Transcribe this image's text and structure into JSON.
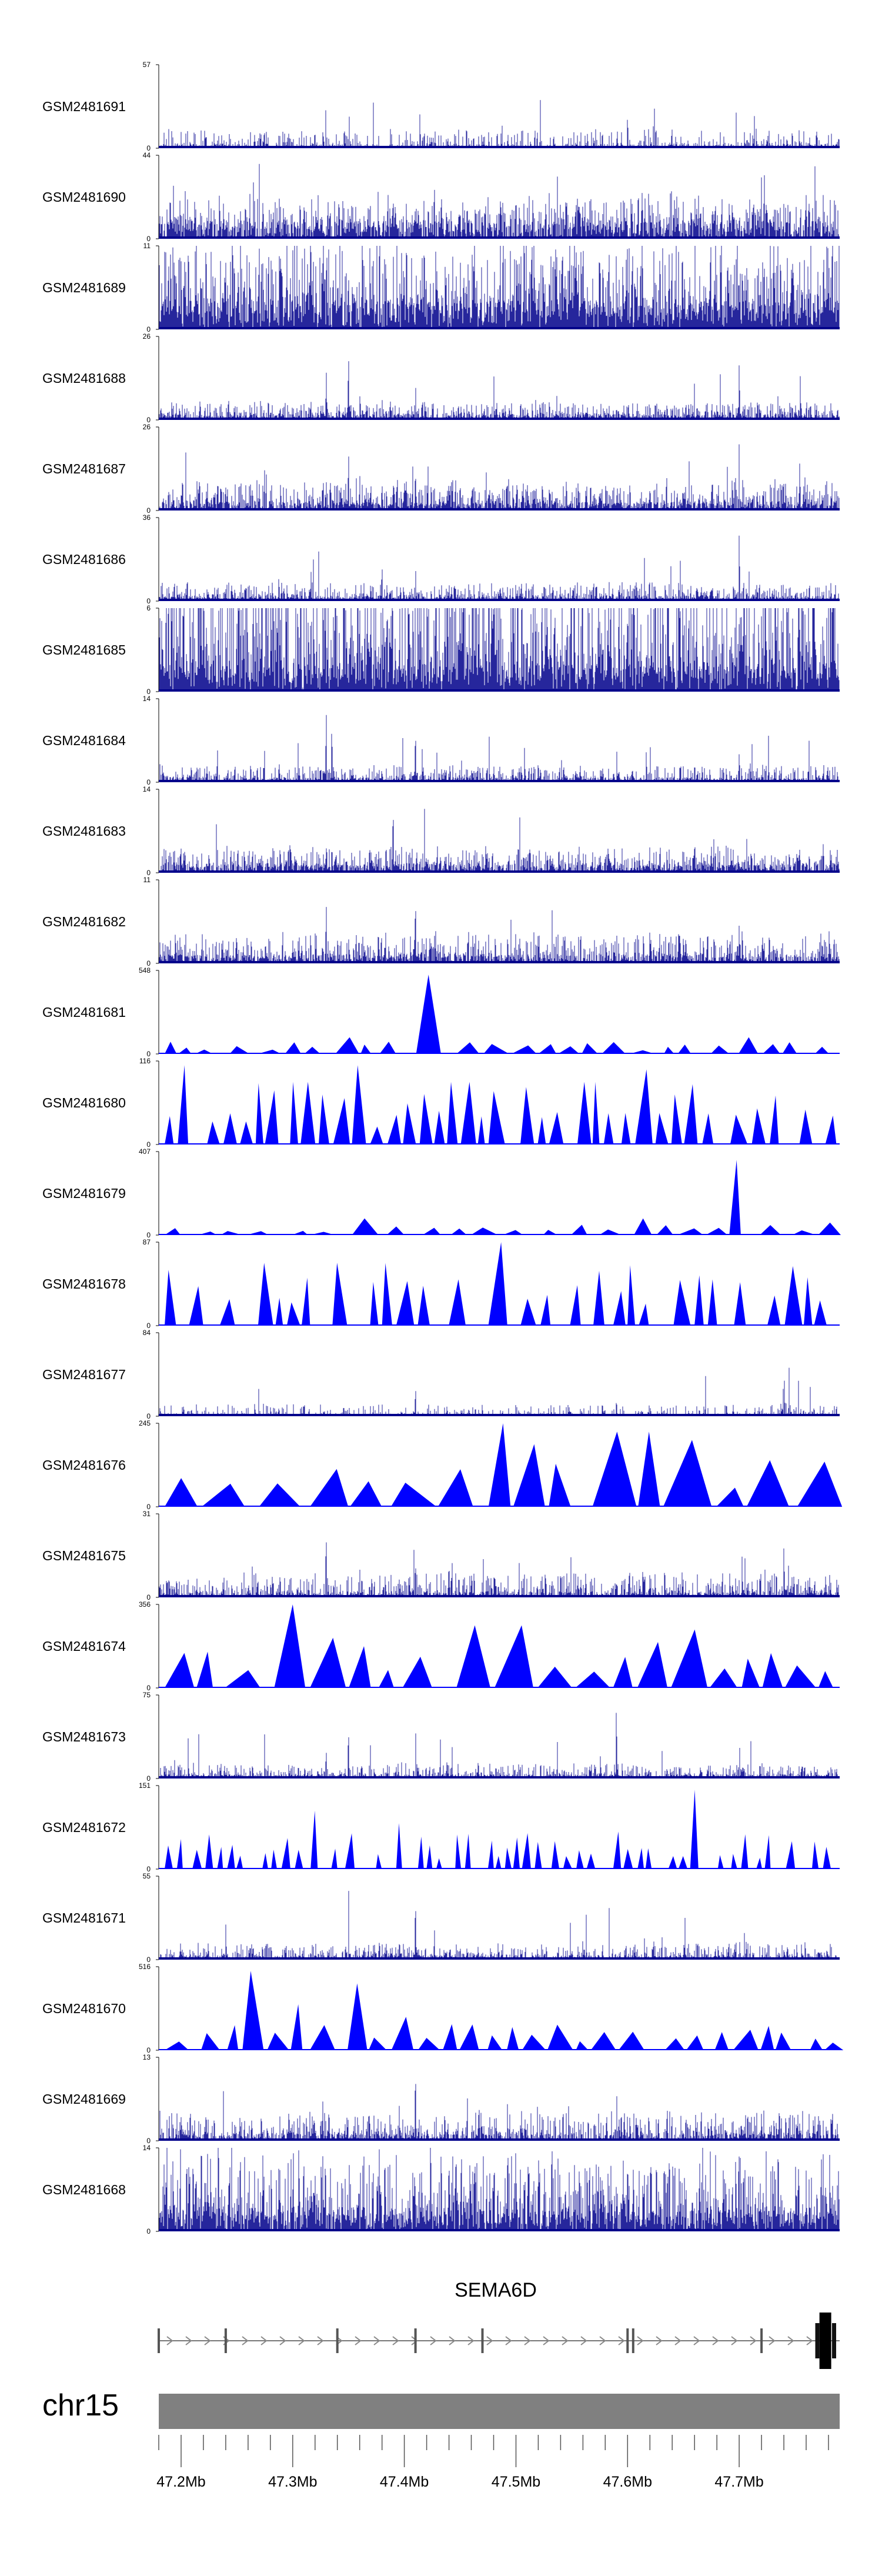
{
  "chart_data": {
    "type": "area",
    "title": "",
    "chromosome": "chr15",
    "gene": "SEMA6D",
    "x_range_mb": [
      47.18,
      47.79
    ],
    "x_ticks": [
      "47.2Mb",
      "47.3Mb",
      "47.4Mb",
      "47.5Mb",
      "47.6Mb",
      "47.7Mb"
    ],
    "x_tick_values_mb": [
      47.2,
      47.3,
      47.4,
      47.5,
      47.6,
      47.7
    ],
    "track_color": "#0000ff",
    "track_dark_color": "#00008b",
    "ideogram_color": "#808080",
    "series": [
      {
        "name": "GSM2481691",
        "ymax": 57,
        "style": "bars",
        "density": 0.55,
        "base": 0.05,
        "noise": 0.08,
        "spikes": [
          [
            47.33,
            1.0
          ],
          [
            47.41,
            0.5
          ],
          [
            47.4,
            0.3
          ],
          [
            47.6,
            0.42
          ],
          [
            47.7,
            0.3
          ],
          [
            47.35,
            0.2
          ]
        ]
      },
      {
        "name": "GSM2481690",
        "ymax": 44,
        "style": "bars",
        "density": 0.9,
        "base": 0.2,
        "noise": 0.15,
        "spikes": [
          [
            47.27,
            1.0
          ],
          [
            47.37,
            0.7
          ],
          [
            47.5,
            0.6
          ],
          [
            47.62,
            0.5
          ],
          [
            47.76,
            0.6
          ],
          [
            47.31,
            0.45
          ],
          [
            47.45,
            0.4
          ]
        ]
      },
      {
        "name": "GSM2481689",
        "ymax": 11,
        "style": "bars",
        "density": 1.0,
        "base": 0.35,
        "noise": 0.35,
        "spikes": [
          [
            47.24,
            0.95
          ],
          [
            47.4,
            0.8
          ],
          [
            47.53,
            0.85
          ],
          [
            47.69,
            0.9
          ],
          [
            47.3,
            0.7
          ]
        ]
      },
      {
        "name": "GSM2481688",
        "ymax": 26,
        "style": "bars",
        "density": 0.8,
        "base": 0.07,
        "noise": 0.07,
        "spikes": [
          [
            47.35,
            1.0
          ],
          [
            47.33,
            0.5
          ],
          [
            47.36,
            0.35
          ],
          [
            47.38,
            0.35
          ],
          [
            47.41,
            0.5
          ],
          [
            47.7,
            0.85
          ],
          [
            47.23,
            0.25
          ]
        ]
      },
      {
        "name": "GSM2481687",
        "ymax": 26,
        "style": "bars",
        "density": 0.9,
        "base": 0.1,
        "noise": 0.12,
        "spikes": [
          [
            47.35,
            0.8
          ],
          [
            47.41,
            0.6
          ],
          [
            47.7,
            1.0
          ],
          [
            47.38,
            0.4
          ],
          [
            47.44,
            0.35
          ],
          [
            47.24,
            0.3
          ]
        ]
      },
      {
        "name": "GSM2481686",
        "ymax": 36,
        "style": "bars",
        "density": 0.8,
        "base": 0.06,
        "noise": 0.07,
        "spikes": [
          [
            47.35,
            0.45
          ],
          [
            47.38,
            0.5
          ],
          [
            47.41,
            0.5
          ],
          [
            47.7,
            1.0
          ],
          [
            47.23,
            0.15
          ],
          [
            47.6,
            0.2
          ]
        ]
      },
      {
        "name": "GSM2481685",
        "ymax": 6,
        "style": "bars",
        "density": 1.0,
        "base": 0.3,
        "noise": 0.55,
        "spikes": [
          [
            47.25,
            1.0
          ],
          [
            47.45,
            1.0
          ],
          [
            47.7,
            1.0
          ]
        ]
      },
      {
        "name": "GSM2481684",
        "ymax": 14,
        "style": "bars",
        "density": 0.8,
        "base": 0.05,
        "noise": 0.07,
        "spikes": [
          [
            47.33,
            0.95
          ],
          [
            47.335,
            0.8
          ],
          [
            47.41,
            0.7
          ],
          [
            47.59,
            0.7
          ],
          [
            47.62,
            0.8
          ],
          [
            47.7,
            0.45
          ],
          [
            47.71,
            0.3
          ],
          [
            47.52,
            0.3
          ]
        ]
      },
      {
        "name": "GSM2481683",
        "ymax": 14,
        "style": "bars",
        "density": 0.85,
        "base": 0.1,
        "noise": 0.1,
        "spikes": [
          [
            47.39,
            0.95
          ],
          [
            47.33,
            0.35
          ],
          [
            47.2,
            0.25
          ],
          [
            47.6,
            0.3
          ],
          [
            47.71,
            0.3
          ]
        ]
      },
      {
        "name": "GSM2481682",
        "ymax": 11,
        "style": "bars",
        "density": 0.85,
        "base": 0.1,
        "noise": 0.12,
        "spikes": [
          [
            47.33,
            0.8
          ],
          [
            47.41,
            0.95
          ],
          [
            47.37,
            0.4
          ],
          [
            47.62,
            0.5
          ],
          [
            47.7,
            0.5
          ],
          [
            47.72,
            0.4
          ]
        ]
      },
      {
        "name": "GSM2481681",
        "ymax": 548,
        "style": "tri",
        "tri_w": 0.016,
        "tri_h": 0.12,
        "spikes": [
          [
            47.41,
            0.95
          ],
          [
            47.35,
            0.2
          ],
          [
            47.7,
            0.2
          ]
        ]
      },
      {
        "name": "GSM2481680",
        "ymax": 116,
        "style": "tri",
        "tri_w": 0.011,
        "tri_h": 0.6,
        "spikes": [
          [
            47.2,
            0.95
          ],
          [
            47.36,
            0.95
          ],
          [
            47.61,
            0.9
          ],
          [
            47.31,
            0.75
          ],
          [
            47.45,
            0.75
          ],
          [
            47.57,
            0.75
          ],
          [
            47.65,
            0.6
          ],
          [
            47.75,
            0.75
          ]
        ]
      },
      {
        "name": "GSM2481679",
        "ymax": 407,
        "style": "tri",
        "tri_w": 0.018,
        "tri_h": 0.1,
        "spikes": [
          [
            47.7,
            0.9
          ],
          [
            47.37,
            0.2
          ],
          [
            47.6,
            0.2
          ],
          [
            47.79,
            0.15
          ]
        ]
      },
      {
        "name": "GSM2481678",
        "ymax": 87,
        "style": "tri",
        "tri_w": 0.012,
        "tri_h": 0.62,
        "spikes": [
          [
            47.48,
            1.0
          ],
          [
            47.39,
            0.75
          ],
          [
            47.5,
            0.55
          ]
        ]
      },
      {
        "name": "GSM2481677",
        "ymax": 84,
        "style": "bars",
        "density": 0.5,
        "base": 0.03,
        "noise": 0.05,
        "spikes": [
          [
            47.33,
            0.4
          ],
          [
            47.35,
            0.55
          ],
          [
            47.41,
            0.4
          ],
          [
            47.67,
            0.55
          ],
          [
            47.74,
            0.95
          ],
          [
            47.59,
            0.2
          ]
        ]
      },
      {
        "name": "GSM2481676",
        "ymax": 245,
        "style": "tri",
        "tri_w": 0.03,
        "tri_h": 0.5,
        "spikes": [
          [
            47.48,
            1.0
          ],
          [
            47.61,
            0.9
          ],
          [
            47.66,
            0.8
          ],
          [
            47.49,
            0.75
          ],
          [
            47.45,
            0.45
          ]
        ]
      },
      {
        "name": "GSM2481675",
        "ymax": 31,
        "style": "bars",
        "density": 0.8,
        "base": 0.06,
        "noise": 0.1,
        "spikes": [
          [
            47.33,
            0.95
          ],
          [
            47.41,
            0.55
          ],
          [
            47.44,
            0.5
          ],
          [
            47.74,
            0.75
          ],
          [
            47.54,
            0.4
          ],
          [
            47.36,
            0.4
          ]
        ]
      },
      {
        "name": "GSM2481674",
        "ymax": 356,
        "style": "tri",
        "tri_w": 0.024,
        "tri_h": 0.35,
        "spikes": [
          [
            47.31,
            1.0
          ],
          [
            47.33,
            0.6
          ],
          [
            47.48,
            0.75
          ],
          [
            47.65,
            0.7
          ],
          [
            47.62,
            0.55
          ],
          [
            47.36,
            0.5
          ],
          [
            47.34,
            0.45
          ]
        ]
      },
      {
        "name": "GSM2481673",
        "ymax": 75,
        "style": "bars",
        "density": 0.7,
        "base": 0.05,
        "noise": 0.06,
        "spikes": [
          [
            47.35,
            0.7
          ],
          [
            47.37,
            0.7
          ],
          [
            47.39,
            0.65
          ],
          [
            47.41,
            0.8
          ],
          [
            47.33,
            0.4
          ],
          [
            47.59,
            1.0
          ],
          [
            47.7,
            0.85
          ]
        ]
      },
      {
        "name": "GSM2481672",
        "ymax": 151,
        "style": "tri",
        "tri_w": 0.006,
        "tri_h": 0.35,
        "spikes": [
          [
            47.66,
            0.95
          ],
          [
            47.32,
            0.7
          ],
          [
            47.67,
            0.55
          ],
          [
            47.4,
            0.55
          ],
          [
            47.22,
            0.45
          ],
          [
            47.59,
            0.45
          ]
        ]
      },
      {
        "name": "GSM2481671",
        "ymax": 55,
        "style": "bars",
        "density": 0.7,
        "base": 0.05,
        "noise": 0.07,
        "spikes": [
          [
            47.35,
            1.0
          ],
          [
            47.41,
            0.85
          ],
          [
            47.24,
            0.5
          ],
          [
            47.33,
            0.5
          ],
          [
            47.76,
            0.35
          ],
          [
            47.63,
            0.3
          ]
        ]
      },
      {
        "name": "GSM2481670",
        "ymax": 516,
        "style": "tri",
        "tri_w": 0.016,
        "tri_h": 0.25,
        "spikes": [
          [
            47.27,
            0.95
          ],
          [
            47.36,
            0.8
          ],
          [
            47.3,
            0.55
          ],
          [
            47.35,
            0.55
          ],
          [
            47.25,
            0.3
          ],
          [
            47.39,
            0.4
          ]
        ]
      },
      {
        "name": "GSM2481669",
        "ymax": 13,
        "style": "bars",
        "density": 0.8,
        "base": 0.08,
        "noise": 0.12,
        "spikes": [
          [
            47.41,
            0.95
          ],
          [
            47.59,
            0.95
          ],
          [
            47.33,
            0.5
          ],
          [
            47.35,
            0.5
          ],
          [
            47.72,
            0.4
          ],
          [
            47.2,
            0.3
          ]
        ]
      },
      {
        "name": "GSM2481668",
        "ymax": 14,
        "style": "bars",
        "density": 0.95,
        "base": 0.25,
        "noise": 0.3,
        "spikes": [
          [
            47.73,
            1.0
          ],
          [
            47.6,
            0.9
          ],
          [
            47.36,
            0.8
          ],
          [
            47.3,
            0.65
          ],
          [
            47.76,
            0.75
          ]
        ]
      }
    ],
    "gene_model": {
      "strand": "+",
      "start_mb": 47.18,
      "end_mb": 47.79,
      "exons_mb": [
        47.18,
        47.24,
        47.34,
        47.41,
        47.47,
        47.6,
        47.605,
        47.72,
        47.77,
        47.775,
        47.78,
        47.785
      ]
    }
  }
}
